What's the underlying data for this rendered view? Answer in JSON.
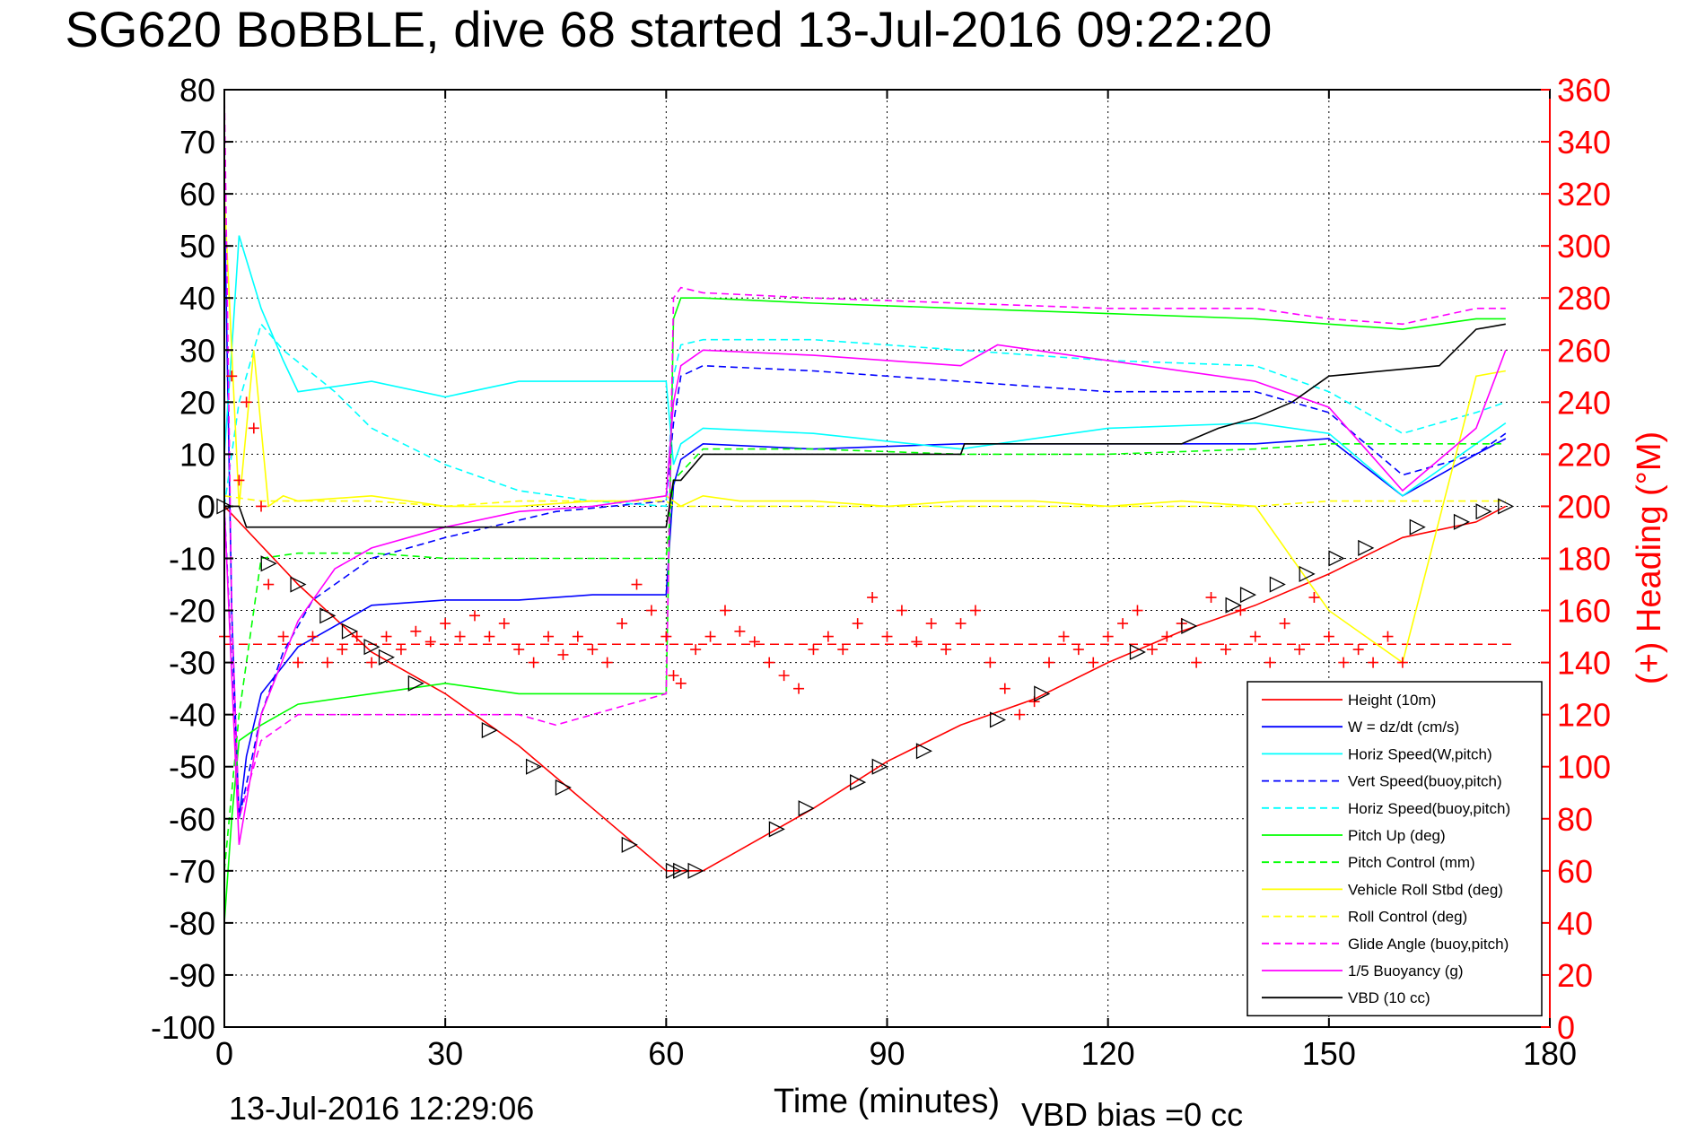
{
  "chart_data": {
    "type": "line",
    "title": "SG620 BoBBLE, dive 68 started 13-Jul-2016 09:22:20",
    "xlabel": "Time (minutes)",
    "ylabel_right": "(+) Heading (°M)",
    "xlim": [
      0,
      180
    ],
    "ylim": [
      -100,
      80
    ],
    "ylim_right": [
      0,
      360
    ],
    "x_ticks": [
      "0",
      "30",
      "60",
      "90",
      "120",
      "150",
      "180"
    ],
    "x_tick_values": [
      0,
      30,
      60,
      90,
      120,
      150,
      180
    ],
    "y_ticks": [
      "80",
      "70",
      "60",
      "50",
      "40",
      "30",
      "20",
      "10",
      "0",
      "-10",
      "-20",
      "-30",
      "-40",
      "-50",
      "-60",
      "-70",
      "-80",
      "-90",
      "-100"
    ],
    "y_tick_values": [
      80,
      70,
      60,
      50,
      40,
      30,
      20,
      10,
      0,
      -10,
      -20,
      -30,
      -40,
      -50,
      -60,
      -70,
      -80,
      -90,
      -100
    ],
    "y_right_ticks": [
      "360",
      "340",
      "320",
      "300",
      "280",
      "260",
      "240",
      "220",
      "200",
      "180",
      "160",
      "140",
      "120",
      "100",
      "80",
      "60",
      "40",
      "20",
      "0"
    ],
    "y_right_tick_values": [
      360,
      340,
      320,
      300,
      280,
      260,
      240,
      220,
      200,
      180,
      160,
      140,
      120,
      100,
      80,
      60,
      40,
      20,
      0
    ],
    "grid": true,
    "legend_position": "bottom-right",
    "footer_left": "13-Jul-2016 12:29:06",
    "footer_right": "VBD bias =0 cc",
    "heading_reference": 147,
    "series": [
      {
        "name": "Height (10m)",
        "color": "#ff0000",
        "dash": "solid",
        "x": [
          0,
          10,
          20,
          30,
          40,
          50,
          60,
          61,
          65,
          70,
          80,
          90,
          100,
          110,
          120,
          130,
          140,
          150,
          160,
          170,
          174
        ],
        "y": [
          0,
          -15,
          -28,
          -36,
          -46,
          -58,
          -70,
          -70,
          -70,
          -66,
          -58,
          -49,
          -42,
          -37,
          -30,
          -24,
          -19,
          -13,
          -6,
          -3,
          0
        ]
      },
      {
        "name": "W = dz/dt (cm/s)",
        "color": "#0000ff",
        "dash": "solid",
        "x": [
          0,
          1,
          2,
          3,
          5,
          10,
          20,
          30,
          40,
          50,
          60,
          61,
          62,
          65,
          80,
          100,
          120,
          140,
          150,
          160,
          170,
          174
        ],
        "y": [
          60,
          -20,
          -60,
          -48,
          -36,
          -27,
          -19,
          -18,
          -18,
          -17,
          -17,
          4,
          9,
          12,
          11,
          12,
          12,
          12,
          13,
          2,
          10,
          13
        ]
      },
      {
        "name": "Horiz Speed(W,pitch)",
        "color": "#00ffff",
        "dash": "solid",
        "x": [
          0,
          1,
          2,
          5,
          8,
          10,
          20,
          30,
          40,
          50,
          60,
          61,
          62,
          65,
          80,
          100,
          120,
          140,
          150,
          160,
          170,
          174
        ],
        "y": [
          10,
          30,
          52,
          38,
          28,
          22,
          24,
          21,
          24,
          24,
          24,
          8,
          12,
          15,
          14,
          11,
          15,
          16,
          14,
          2,
          12,
          16
        ]
      },
      {
        "name": "Vert Speed(buoy,pitch)",
        "color": "#0000ff",
        "dash": "dashed",
        "x": [
          0,
          2,
          5,
          8,
          12,
          20,
          30,
          45,
          60,
          61,
          62,
          65,
          80,
          100,
          120,
          140,
          150,
          160,
          170,
          174
        ],
        "y": [
          0,
          -60,
          -40,
          -28,
          -18,
          -10,
          -6,
          -1,
          1,
          16,
          25,
          27,
          26,
          24,
          22,
          22,
          18,
          6,
          10,
          14
        ]
      },
      {
        "name": "Horiz Speed(buoy,pitch)",
        "color": "#00ffff",
        "dash": "dashed",
        "x": [
          0,
          2,
          5,
          8,
          15,
          20,
          30,
          40,
          50,
          60,
          61,
          62,
          65,
          80,
          100,
          120,
          140,
          150,
          160,
          170,
          174
        ],
        "y": [
          0,
          20,
          35,
          30,
          22,
          15,
          8,
          3,
          1,
          0,
          25,
          31,
          32,
          32,
          30,
          28,
          27,
          22,
          14,
          18,
          20
        ]
      },
      {
        "name": "Pitch Up (deg)",
        "color": "#00ff00",
        "dash": "solid",
        "x": [
          0,
          1,
          2,
          5,
          10,
          20,
          30,
          40,
          50,
          60,
          61,
          62,
          65,
          80,
          100,
          120,
          140,
          150,
          160,
          170,
          174
        ],
        "y": [
          -80,
          -60,
          -45,
          -42,
          -38,
          -36,
          -34,
          -36,
          -36,
          -36,
          36,
          40,
          40,
          39,
          38,
          37,
          36,
          35,
          34,
          36,
          36
        ]
      },
      {
        "name": "Pitch Control (mm)",
        "color": "#00ff00",
        "dash": "dashed",
        "x": [
          0,
          2,
          5,
          10,
          20,
          30,
          40,
          50,
          60,
          61,
          65,
          80,
          100,
          120,
          140,
          150,
          160,
          170,
          174
        ],
        "y": [
          -70,
          -40,
          -10,
          -9,
          -9,
          -10,
          -10,
          -10,
          -10,
          5,
          11,
          11,
          10,
          10,
          11,
          12,
          12,
          12,
          12
        ]
      },
      {
        "name": "Vehicle Roll Stbd (deg)",
        "color": "#ffff00",
        "dash": "solid",
        "x": [
          0,
          2,
          4,
          6,
          8,
          10,
          20,
          30,
          40,
          50,
          55,
          60,
          62,
          65,
          70,
          80,
          90,
          100,
          110,
          120,
          130,
          140,
          150,
          160,
          170,
          174
        ],
        "y": [
          60,
          0,
          30,
          0,
          2,
          1,
          2,
          0,
          0,
          1,
          1,
          2,
          0,
          2,
          1,
          1,
          0,
          1,
          1,
          0,
          1,
          0,
          -20,
          -30,
          25,
          26
        ]
      },
      {
        "name": "Roll Control (deg)",
        "color": "#ffff00",
        "dash": "dashed",
        "x": [
          0,
          5,
          10,
          20,
          30,
          40,
          50,
          60,
          61,
          65,
          80,
          100,
          120,
          140,
          150,
          160,
          170,
          174
        ],
        "y": [
          2,
          1,
          1,
          1,
          0,
          1,
          1,
          1,
          0,
          0,
          0,
          0,
          0,
          0,
          1,
          1,
          1,
          1
        ]
      },
      {
        "name": "Glide Angle (buoy,pitch)",
        "color": "#ff00ff",
        "dash": "dashed",
        "x": [
          0,
          1,
          2,
          5,
          10,
          20,
          30,
          40,
          45,
          60,
          61,
          62,
          65,
          80,
          100,
          120,
          140,
          150,
          160,
          170,
          174
        ],
        "y": [
          80,
          -20,
          -60,
          -45,
          -40,
          -40,
          -40,
          -40,
          -42,
          -36,
          40,
          42,
          41,
          40,
          39,
          38,
          38,
          36,
          35,
          38,
          38
        ]
      },
      {
        "name": "1/5 Buoyancy (g)",
        "color": "#ff00ff",
        "dash": "solid",
        "x": [
          0,
          2,
          5,
          10,
          15,
          20,
          30,
          40,
          50,
          60,
          61,
          62,
          65,
          80,
          100,
          105,
          120,
          140,
          150,
          160,
          170,
          174
        ],
        "y": [
          0,
          -65,
          -40,
          -22,
          -12,
          -8,
          -4,
          -1,
          0,
          2,
          20,
          27,
          30,
          29,
          27,
          31,
          28,
          24,
          19,
          3,
          15,
          30
        ]
      },
      {
        "name": "VBD (10 cc)",
        "color": "#000000",
        "dash": "solid",
        "x": [
          0,
          2,
          3,
          60,
          61,
          62,
          65,
          100,
          100.5,
          130,
          135,
          140,
          145,
          150,
          165,
          170,
          174
        ],
        "y": [
          0,
          0,
          -4,
          -4,
          5,
          5,
          10,
          10,
          12,
          12,
          15,
          17,
          20,
          25,
          27,
          34,
          35
        ]
      }
    ],
    "heading_series": {
      "name": "Heading",
      "color": "#ff0000",
      "marker": "+",
      "axis": "right",
      "x": [
        0,
        1,
        2,
        3,
        4,
        5,
        6,
        8,
        10,
        12,
        14,
        16,
        18,
        20,
        22,
        24,
        26,
        28,
        30,
        32,
        34,
        36,
        38,
        40,
        42,
        44,
        46,
        48,
        50,
        52,
        54,
        56,
        58,
        60,
        61,
        62,
        64,
        66,
        68,
        70,
        72,
        74,
        76,
        78,
        80,
        82,
        84,
        86,
        88,
        90,
        92,
        94,
        96,
        98,
        100,
        102,
        104,
        106,
        108,
        110,
        112,
        114,
        116,
        118,
        120,
        122,
        124,
        126,
        128,
        130,
        132,
        134,
        136,
        138,
        140,
        142,
        144,
        146,
        148,
        150,
        152,
        154,
        156,
        158,
        160
      ],
      "y": [
        150,
        250,
        210,
        240,
        230,
        200,
        170,
        150,
        140,
        150,
        140,
        145,
        150,
        140,
        150,
        145,
        152,
        148,
        155,
        150,
        158,
        150,
        155,
        145,
        140,
        150,
        143,
        150,
        145,
        140,
        155,
        170,
        160,
        150,
        135,
        132,
        145,
        150,
        160,
        152,
        148,
        140,
        135,
        130,
        145,
        150,
        145,
        155,
        165,
        150,
        160,
        148,
        155,
        145,
        155,
        160,
        140,
        130,
        120,
        125,
        140,
        150,
        145,
        140,
        150,
        155,
        160,
        145,
        150,
        155,
        140,
        165,
        145,
        160,
        150,
        140,
        155,
        145,
        165,
        150,
        140,
        145,
        140,
        150,
        140
      ]
    },
    "dive_markers": {
      "x": [
        0,
        6,
        10,
        14,
        17,
        20,
        22,
        26,
        36,
        42,
        46,
        55,
        61,
        62,
        64,
        75,
        79,
        86,
        89,
        95,
        105,
        111,
        124,
        131,
        137,
        139,
        143,
        147,
        151,
        155,
        162,
        168,
        171,
        174
      ],
      "y": [
        0,
        -11,
        -15,
        -21,
        -24,
        -27,
        -29,
        -34,
        -43,
        -50,
        -54,
        -65,
        -70,
        -70,
        -70,
        -62,
        -58,
        -53,
        -50,
        -47,
        -41,
        -36,
        -28,
        -23,
        -19,
        -17,
        -15,
        -13,
        -10,
        -8,
        -4,
        -3,
        -1,
        0
      ]
    }
  }
}
